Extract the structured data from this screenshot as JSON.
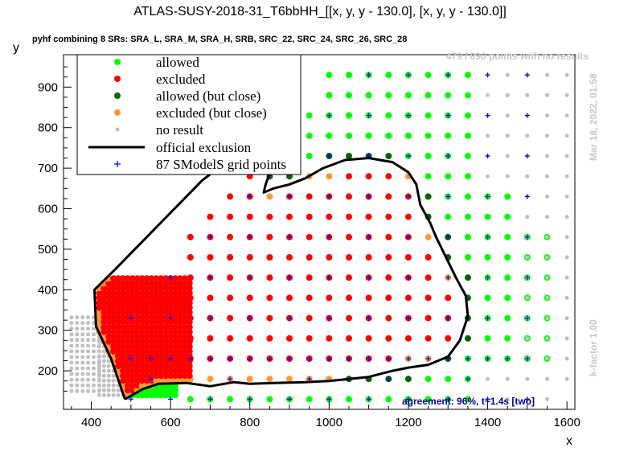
{
  "chart_data": {
    "type": "scatter",
    "title": "ATLAS-SUSY-2018-31_T6bbHH_[[x, y, y - 130.0], [x, y, y - 130.0]]",
    "subtitle": "pyhf combining 8 SRs: SRA_L, SRA_M, SRA_H, SRB, SRC_22, SRC_24, SRC_26, SRC_28",
    "xlabel": "x",
    "ylabel": "y",
    "xlim": [
      330,
      1620
    ],
    "ylim": [
      105,
      980
    ],
    "xticks": [
      400,
      600,
      800,
      1000,
      1200,
      1400,
      1600
    ],
    "yticks": [
      200,
      300,
      400,
      500,
      600,
      700,
      800,
      900
    ],
    "no_result_text": "479 / 890 points with no results",
    "timestamp": "Mar 18, 2022, 01:58",
    "kfactor": "k-factor 1.00",
    "agreement": "agreement: 96%, t~1.4s [two]",
    "legend": {
      "placement": "top-left",
      "entries": [
        {
          "label": "allowed",
          "marker": "dot",
          "color": "#00ff00"
        },
        {
          "label": "excluded",
          "marker": "dot",
          "color": "#ff0000"
        },
        {
          "label": "allowed (but close)",
          "marker": "dot",
          "color": "#006400"
        },
        {
          "label": "excluded (but close)",
          "marker": "dot",
          "color": "#ff9933"
        },
        {
          "label": "no result",
          "marker": "small-dot",
          "color": "#c0c0c0"
        },
        {
          "label": "official exclusion",
          "marker": "line",
          "color": "#000000"
        },
        {
          "label": "87 SModelS grid points",
          "marker": "cross",
          "color": "#0000ff"
        }
      ]
    },
    "colors": {
      "allowed": "#00ff00",
      "excluded": "#ff0000",
      "allowed_close": "#006400",
      "excluded_close": "#ff9933",
      "no_result": "#c0c0c0",
      "official": "#000000",
      "smodels": "#0000ff"
    },
    "official_exclusion": [
      [
        485,
        130
      ],
      [
        530,
        155
      ],
      [
        570,
        168
      ],
      [
        640,
        170
      ],
      [
        700,
        162
      ],
      [
        760,
        172
      ],
      [
        800,
        168
      ],
      [
        860,
        170
      ],
      [
        940,
        172
      ],
      [
        1000,
        175
      ],
      [
        1100,
        185
      ],
      [
        1160,
        200
      ],
      [
        1200,
        208
      ],
      [
        1250,
        215
      ],
      [
        1300,
        235
      ],
      [
        1330,
        275
      ],
      [
        1350,
        335
      ],
      [
        1345,
        385
      ],
      [
        1320,
        430
      ],
      [
        1290,
        490
      ],
      [
        1270,
        530
      ],
      [
        1255,
        565
      ],
      [
        1230,
        610
      ],
      [
        1220,
        660
      ],
      [
        1200,
        690
      ],
      [
        1160,
        715
      ],
      [
        1100,
        725
      ],
      [
        1040,
        720
      ],
      [
        985,
        700
      ],
      [
        940,
        675
      ],
      [
        900,
        660
      ],
      [
        860,
        650
      ],
      [
        835,
        640
      ],
      [
        840,
        660
      ],
      [
        855,
        700
      ],
      [
        860,
        750
      ],
      [
        855,
        775
      ],
      [
        830,
        775
      ],
      [
        790,
        752
      ],
      [
        740,
        715
      ],
      [
        680,
        670
      ],
      [
        600,
        590
      ],
      [
        530,
        520
      ],
      [
        460,
        450
      ],
      [
        408,
        400
      ],
      [
        412,
        310
      ],
      [
        450,
        230
      ],
      [
        485,
        130
      ]
    ]
  }
}
